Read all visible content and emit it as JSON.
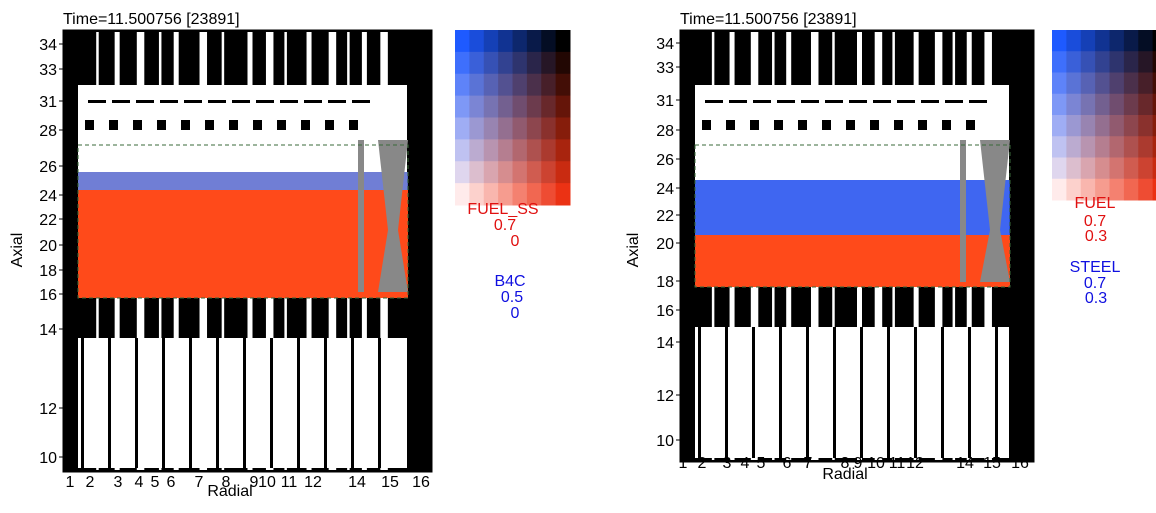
{
  "panels": [
    {
      "time": "Time=11.500756 [23891]",
      "y_label": "Axial",
      "x_label": "Radial",
      "y_ticks": [
        "34",
        "33",
        "31",
        "28",
        "26",
        "24",
        "22",
        "20",
        "18",
        "16",
        "14",
        "12",
        "10"
      ],
      "x_ticks": [
        "1",
        "2",
        "3",
        "4",
        "5",
        "6",
        "7",
        "8",
        "9",
        "10",
        "11",
        "12",
        "14",
        "15",
        "16"
      ],
      "legend": {
        "red": {
          "name": "FUEL_SS",
          "max": "0.7",
          "min": "0"
        },
        "blue": {
          "name": "B4C",
          "max": "0.5",
          "min": "0"
        }
      }
    },
    {
      "time": "Time=11.500756 [23891]",
      "y_label": "Axial",
      "x_label": "Radial",
      "y_ticks": [
        "34",
        "33",
        "31",
        "28",
        "26",
        "24",
        "22",
        "20",
        "18",
        "16",
        "14",
        "12",
        "10"
      ],
      "x_ticks": [
        "1",
        "2",
        "3",
        "4",
        "5",
        "6",
        "7",
        "8",
        "9",
        "10",
        "11",
        "12",
        "14",
        "15",
        "16"
      ],
      "legend": {
        "red": {
          "name": "FUEL",
          "max": "0.7",
          "min": "0.3"
        },
        "blue": {
          "name": "STEEL",
          "max": "0.7",
          "min": "0.3"
        }
      }
    }
  ]
}
